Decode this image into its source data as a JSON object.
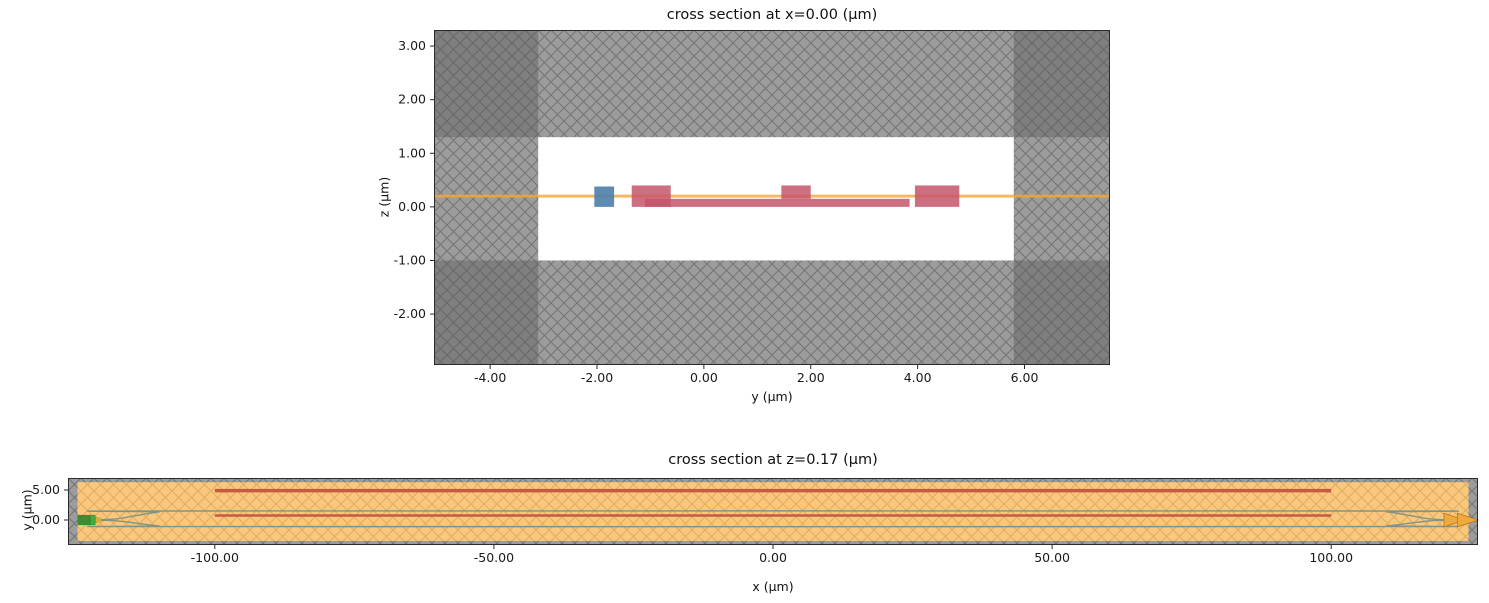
{
  "figure": {
    "background": "#ffffff"
  },
  "chart_data": [
    {
      "type": "cross_section_geometry",
      "title": "cross section at x=0.00 (μm)",
      "xlabel": "y (μm)",
      "ylabel": "z (μm)",
      "xlim": [
        -5.05,
        7.6
      ],
      "ylim": [
        -2.95,
        3.3
      ],
      "grid": false,
      "xticks": {
        "values": [
          -4,
          -2,
          0,
          2,
          4,
          6
        ],
        "labels": [
          "-4.00",
          "-2.00",
          "0.00",
          "2.00",
          "4.00",
          "6.00"
        ]
      },
      "yticks": {
        "values": [
          3,
          2,
          1,
          0,
          -1,
          -2
        ],
        "labels": [
          "3.00",
          "2.00",
          "1.00",
          "0.00",
          "-1.00",
          "-2.00"
        ]
      },
      "shapes": [
        {
          "name": "clad-hatched-background",
          "type": "rect",
          "x0": -5.05,
          "x1": 7.6,
          "y0": -2.95,
          "y1": 3.3,
          "fill": "#9c9c9c",
          "hatch": "gray"
        },
        {
          "name": "corner-top-left",
          "type": "rect",
          "x0": -5.05,
          "x1": -3.1,
          "y0": 1.3,
          "y1": 3.3,
          "fill": "#7f7f7f",
          "hatch": "gray"
        },
        {
          "name": "corner-top-right",
          "type": "rect",
          "x0": 5.8,
          "x1": 7.6,
          "y0": 1.3,
          "y1": 3.3,
          "fill": "#7f7f7f",
          "hatch": "gray"
        },
        {
          "name": "corner-bottom-left",
          "type": "rect",
          "x0": -5.05,
          "x1": -3.1,
          "y0": -2.95,
          "y1": -1.0,
          "fill": "#7f7f7f",
          "hatch": "gray"
        },
        {
          "name": "corner-bottom-right",
          "type": "rect",
          "x0": 5.8,
          "x1": 7.6,
          "y0": -2.95,
          "y1": -1.0,
          "fill": "#7f7f7f",
          "hatch": "gray"
        },
        {
          "name": "oxide-window-white",
          "type": "rect",
          "x0": -3.1,
          "x1": 5.8,
          "y0": -1.0,
          "y1": 1.3,
          "fill": "#ffffff"
        },
        {
          "name": "orange-layer-line",
          "type": "line",
          "x0": -5.05,
          "x1": 7.6,
          "y0": 0.2,
          "y1": 0.2,
          "stroke": "#f3a83b",
          "width": 3,
          "opacity": 0.8
        },
        {
          "name": "teal-core-rect",
          "type": "rect",
          "x0": -2.05,
          "x1": -1.68,
          "y0": 0.0,
          "y1": 0.38,
          "fill": "#4d7ea8",
          "opacity": 0.9
        },
        {
          "name": "red-rect-left",
          "type": "rect",
          "x0": -1.35,
          "x1": -0.62,
          "y0": 0.0,
          "y1": 0.4,
          "fill": "#c4556b",
          "opacity": 0.85
        },
        {
          "name": "red-slab-rect",
          "type": "rect",
          "x0": -1.1,
          "x1": 3.85,
          "y0": 0.0,
          "y1": 0.15,
          "fill": "#c4556b",
          "opacity": 0.85
        },
        {
          "name": "red-rect-mid",
          "type": "rect",
          "x0": 1.45,
          "x1": 2.0,
          "y0": 0.15,
          "y1": 0.4,
          "fill": "#c4556b",
          "opacity": 0.85
        },
        {
          "name": "red-rect-right",
          "type": "rect",
          "x0": 3.95,
          "x1": 4.78,
          "y0": 0.0,
          "y1": 0.4,
          "fill": "#c4556b",
          "opacity": 0.85
        }
      ]
    },
    {
      "type": "cross_section_geometry",
      "title": "cross section at z=0.17 (μm)",
      "xlabel": "x (μm)",
      "ylabel": "y (μm)",
      "xlim": [
        -126.3,
        126.3
      ],
      "ylim": [
        -4.17,
        7.0
      ],
      "grid": false,
      "xticks": {
        "values": [
          -100,
          -50,
          0,
          50,
          100
        ],
        "labels": [
          "-100.00",
          "-50.00",
          "0.00",
          "50.00",
          "100.00"
        ]
      },
      "yticks": {
        "values": [
          5,
          0
        ],
        "labels": [
          "5.00",
          "0.00"
        ]
      },
      "shapes": [
        {
          "name": "border-hatched-background",
          "type": "rect",
          "x0": -126.3,
          "x1": 126.3,
          "y0": -4.17,
          "y1": 7.0,
          "fill": "#9c9c9c",
          "hatch": "gray"
        },
        {
          "name": "clad-orange-region",
          "type": "rect",
          "x0": -124.6,
          "x1": 124.6,
          "y0": -3.5,
          "y1": 6.3,
          "fill": "#f9c87e",
          "hatch": "orange"
        },
        {
          "name": "red-trace-top",
          "type": "line",
          "x0": -100,
          "x1": 100,
          "y0": 4.9,
          "y1": 4.9,
          "stroke": "#c34f3e",
          "width": 3.5,
          "opacity": 0.9
        },
        {
          "name": "red-trace-mid",
          "type": "line",
          "x0": -100,
          "x1": 100,
          "y0": 0.75,
          "y1": 0.75,
          "stroke": "#c34f3e",
          "width": 2.5,
          "opacity": 0.9
        },
        {
          "name": "waveguide-arm-top",
          "type": "path",
          "smooth": true,
          "stroke": "#7f9486",
          "width": 1.4,
          "points": [
            [
              -122.5,
              0
            ],
            [
              -118,
              0.15
            ],
            [
              -114,
              0.75
            ],
            [
              -110,
              1.35
            ],
            [
              -106,
              1.5
            ],
            [
              106,
              1.5
            ],
            [
              110,
              1.35
            ],
            [
              114,
              0.75
            ],
            [
              118,
              0.15
            ],
            [
              122.5,
              0
            ]
          ]
        },
        {
          "name": "waveguide-arm-bottom",
          "type": "path",
          "smooth": true,
          "stroke": "#7f9486",
          "width": 1.4,
          "points": [
            [
              -122.5,
              0
            ],
            [
              -118,
              -0.11
            ],
            [
              -114,
              -0.55
            ],
            [
              -110,
              -0.99
            ],
            [
              -106,
              -1.1
            ],
            [
              106,
              -1.1
            ],
            [
              110,
              -0.99
            ],
            [
              114,
              -0.55
            ],
            [
              118,
              -0.11
            ],
            [
              122.5,
              0
            ]
          ]
        },
        {
          "name": "left-port-marker",
          "type": "rect",
          "x0": -124.6,
          "x1": -121.4,
          "y0": -0.85,
          "y1": 0.85,
          "fill": "#2e8b2e",
          "opacity": 0.95
        },
        {
          "name": "left-port-arrow",
          "type": "polygon",
          "points": [
            [
              -122.2,
              0.9
            ],
            [
              -119.8,
              0
            ],
            [
              -122.2,
              -0.9
            ]
          ],
          "fill": "#3fae3f"
        },
        {
          "name": "left-port-orange-dot",
          "type": "rect",
          "x0": -121.3,
          "x1": -120.3,
          "y0": -0.45,
          "y1": 0.45,
          "fill": "#f2a93b",
          "opacity": 0.9
        },
        {
          "name": "right-port-arrow-1",
          "type": "polygon",
          "points": [
            [
              120.2,
              1.15
            ],
            [
              123.9,
              0
            ],
            [
              120.2,
              -1.15
            ]
          ],
          "fill": "#f2a93b",
          "stroke": "#b17a25",
          "width": 0.8
        },
        {
          "name": "right-port-arrow-2",
          "type": "polygon",
          "points": [
            [
              122.6,
              1.15
            ],
            [
              126.3,
              0
            ],
            [
              122.6,
              -1.15
            ]
          ],
          "fill": "#f2a93b",
          "stroke": "#b17a25",
          "width": 0.8
        }
      ]
    }
  ]
}
